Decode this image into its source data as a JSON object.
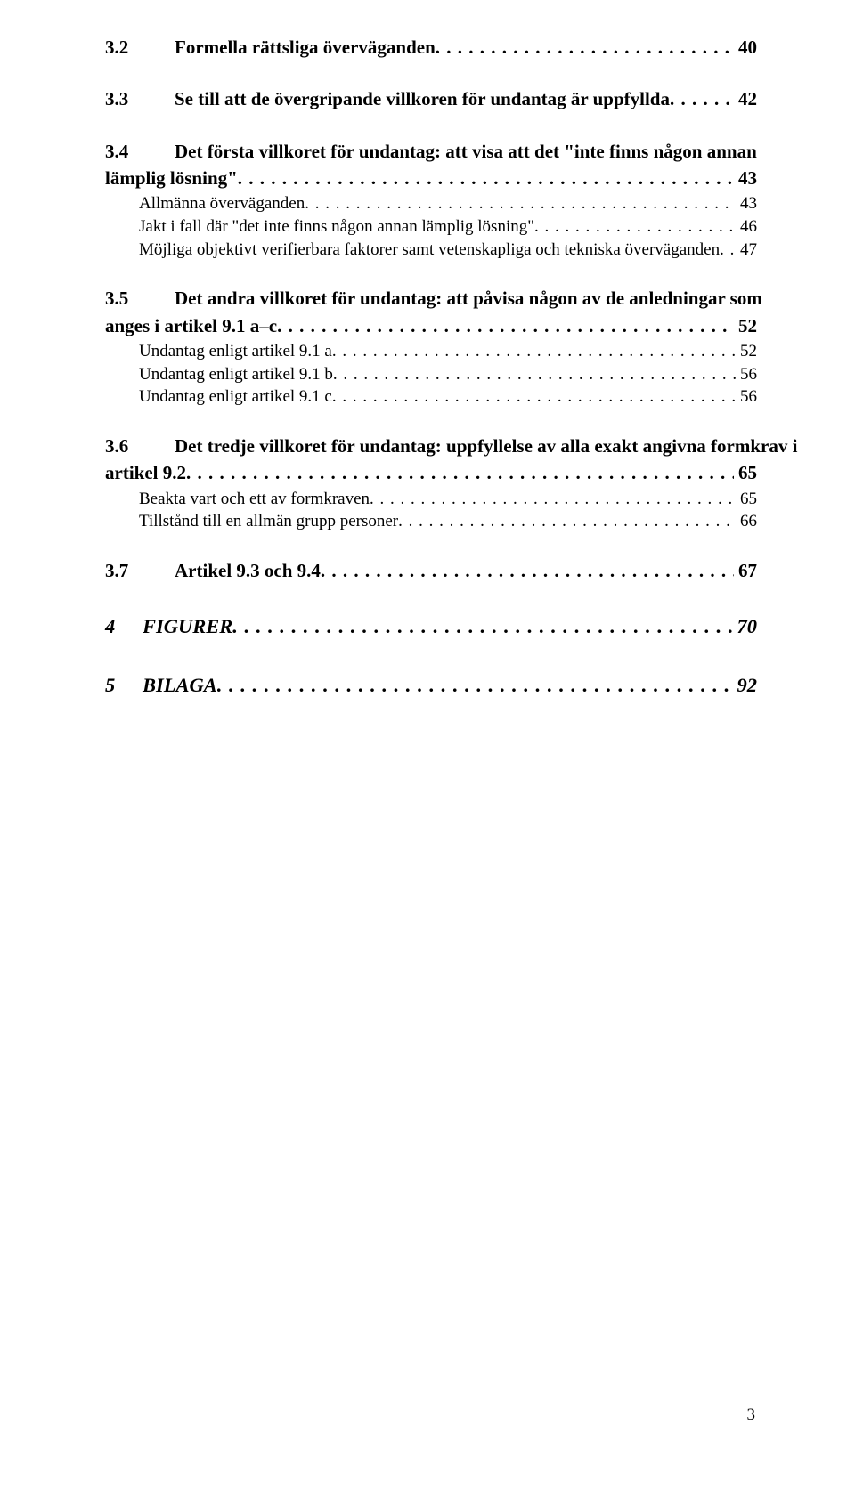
{
  "leaderDots": ". . . . . . . . . . . . . . . . . . . . . . . . . . . . . . . . . . . . . . . . . . . . . . . . . . . . . . . . . . . . . . . . . . . . . . . . . . . . . . . . . . . . . . . . . . . . . . . . . . . . . . . . . . . . . . . . . . . . . . . . . . . . . . . . . . . . . . . . . . . . . . . . . . . . . . . . . . . . . . . . . . . . . . . . . . . . . . . . . . . . . . . . . . . . . . . . . . . . . . . . . . . . . . . . . . . . . . . . . . . . . . . . . . . . . . . . . . . . . . . . . . . . . . . . . .",
  "items": [
    {
      "type": "h2",
      "num": "3.2",
      "label": "Formella rättsliga överväganden",
      "page": "40"
    },
    {
      "type": "gap-md"
    },
    {
      "type": "h2",
      "num": "3.3",
      "label": "Se till att de övergripande villkoren för undantag är uppfyllda",
      "page": "42"
    },
    {
      "type": "gap-md"
    },
    {
      "type": "h2",
      "num": "3.4",
      "label": "Det första villkoret för undantag: att visa att det \"inte finns någon annan",
      "page": ""
    },
    {
      "type": "h2-continue",
      "num": "",
      "label": "lämplig lösning\"",
      "page": "43"
    },
    {
      "type": "sub",
      "label": "Allmänna överväganden",
      "page": "43"
    },
    {
      "type": "sub",
      "label": "Jakt i fall där \"det inte finns någon annan lämplig lösning\"",
      "page": "46"
    },
    {
      "type": "sub",
      "label": "Möjliga objektivt verifierbara faktorer samt vetenskapliga och tekniska överväganden",
      "page": "47"
    },
    {
      "type": "gap-md"
    },
    {
      "type": "h2",
      "num": "3.5",
      "label": "Det andra villkoret för undantag: att påvisa någon av de anledningar som",
      "page": ""
    },
    {
      "type": "h2-continue",
      "num": "",
      "label": "anges i artikel 9.1 a–c",
      "page": "52"
    },
    {
      "type": "sub",
      "label": "Undantag enligt artikel 9.1 a",
      "page": "52"
    },
    {
      "type": "sub",
      "label": "Undantag enligt artikel 9.1 b",
      "page": "56"
    },
    {
      "type": "sub",
      "label": "Undantag enligt artikel 9.1 c",
      "page": "56"
    },
    {
      "type": "gap-md"
    },
    {
      "type": "h2",
      "num": "3.6",
      "label": "Det tredje villkoret för undantag: uppfyllelse av alla exakt angivna formkrav i",
      "page": ""
    },
    {
      "type": "h2-continue",
      "num": "",
      "label": "artikel 9.2",
      "page": "65"
    },
    {
      "type": "sub",
      "label": "Beakta vart och ett av formkraven",
      "page": "65"
    },
    {
      "type": "sub",
      "label": "Tillstånd till en allmän grupp personer",
      "page": "66"
    },
    {
      "type": "gap-md"
    },
    {
      "type": "h2",
      "num": "3.7",
      "label": "Artikel 9.3 och 9.4",
      "page": "67"
    },
    {
      "type": "gap-md"
    },
    {
      "type": "h1",
      "num": "4",
      "label": "FIGURER",
      "page": "70"
    },
    {
      "type": "gap-md"
    },
    {
      "type": "h1",
      "num": "5",
      "label": "BILAGA",
      "page": "92"
    }
  ],
  "pageNumber": "3"
}
